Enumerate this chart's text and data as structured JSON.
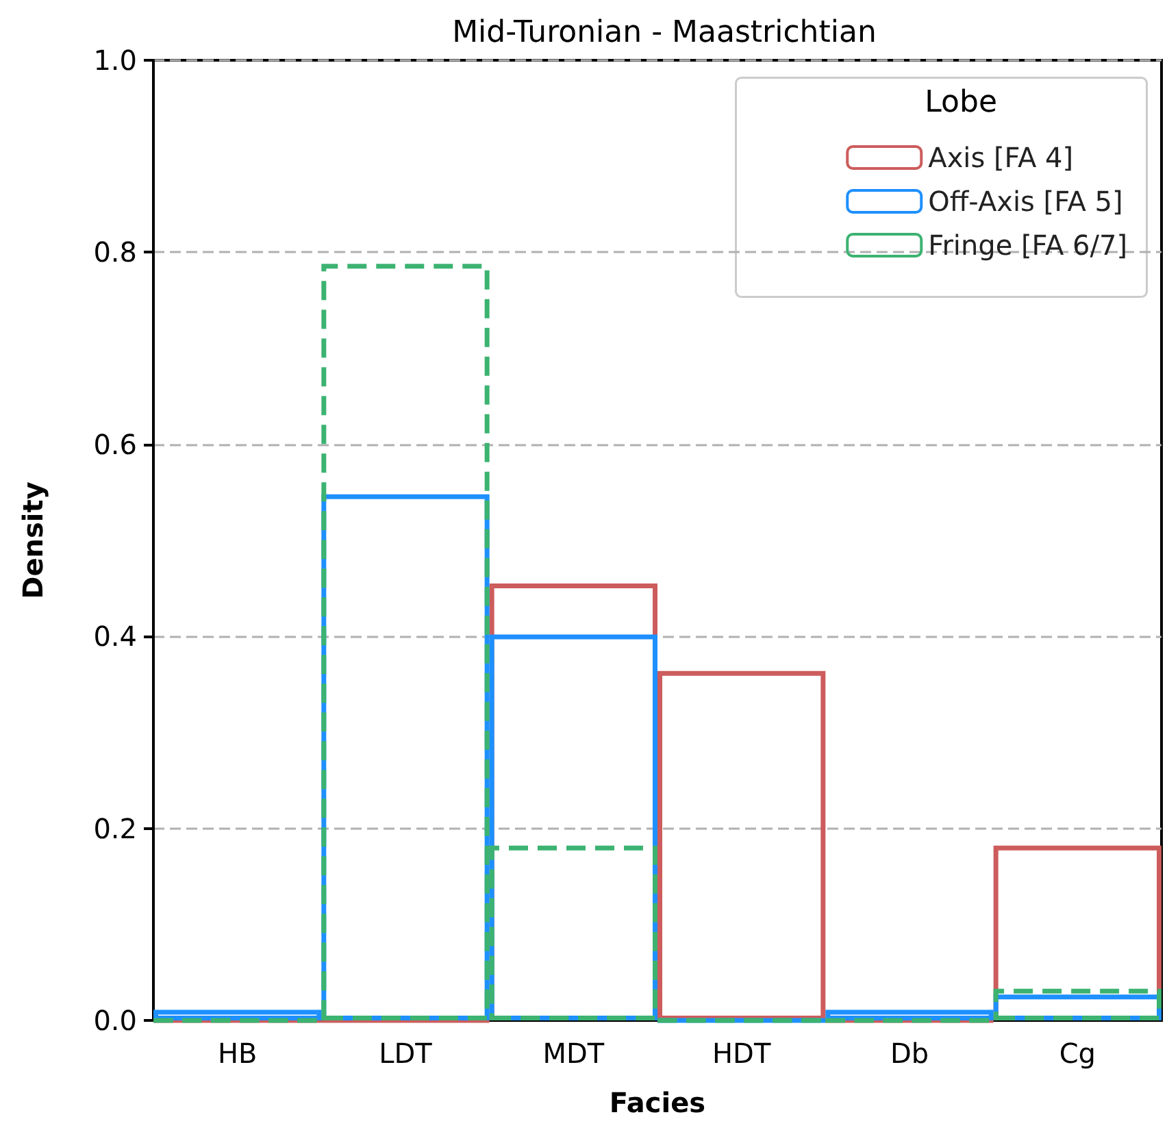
{
  "chart_data": {
    "type": "bar",
    "title": "Mid-Turonian - Maastrichtian",
    "xlabel": "Facies",
    "ylabel": "Density",
    "legend_title": "Lobe",
    "categories": [
      "HB",
      "LDT",
      "MDT",
      "HDT",
      "Db",
      "Cg"
    ],
    "series": [
      {
        "name": "Axis [FA 4]",
        "color": "#cd5c5c",
        "line_style": "solid",
        "values": [
          0,
          0,
          0.455,
          0.364,
          0,
          0.182
        ]
      },
      {
        "name": "Off-Axis [FA 5]",
        "color": "#1e90ff",
        "line_style": "solid",
        "values": [
          0.011,
          0.548,
          0.402,
          0,
          0.011,
          0.027
        ]
      },
      {
        "name": "Fringe [FA 6/7]",
        "color": "#3cb371",
        "line_style": "dashed",
        "values": [
          0,
          0.788,
          0.182,
          0,
          0,
          0.033
        ]
      }
    ],
    "ylim": [
      0,
      1.0
    ],
    "yticks": [
      {
        "value": 0,
        "label": "0.0"
      },
      {
        "value": 0.2,
        "label": "0.2"
      },
      {
        "value": 0.4,
        "label": "0.4"
      },
      {
        "value": 0.6,
        "label": "0.6"
      },
      {
        "value": 0.8,
        "label": "0.8"
      },
      {
        "value": 1.0,
        "label": "1.0"
      }
    ],
    "grid": "y",
    "legend": "top right"
  }
}
